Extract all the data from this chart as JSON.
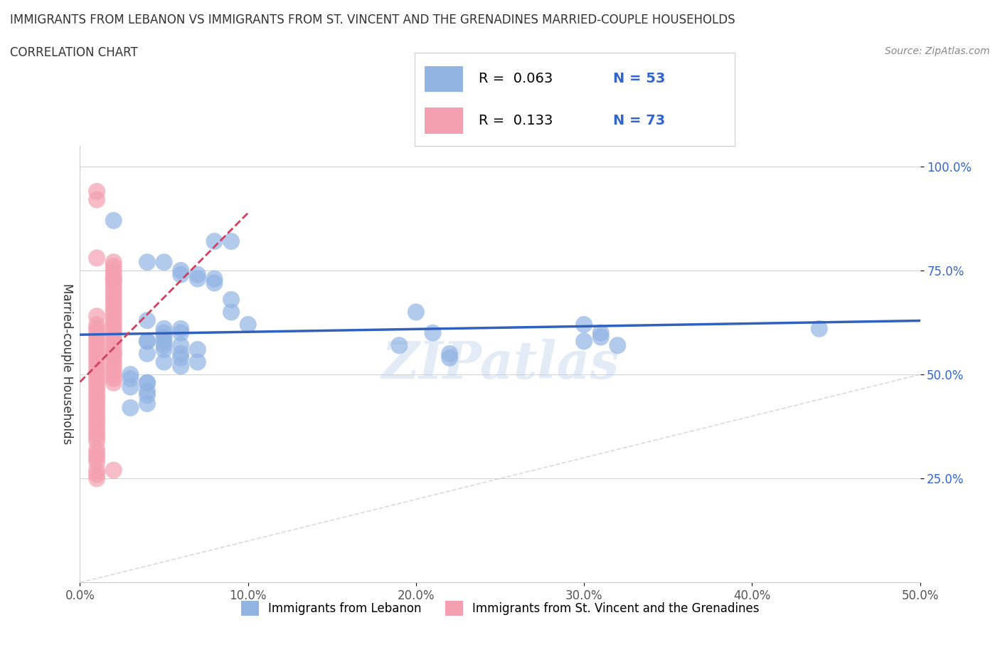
{
  "title_line1": "IMMIGRANTS FROM LEBANON VS IMMIGRANTS FROM ST. VINCENT AND THE GRENADINES MARRIED-COUPLE HOUSEHOLDS",
  "title_line2": "CORRELATION CHART",
  "source_text": "Source: ZipAtlas.com",
  "ylabel": "Married-couple Households",
  "xlabel": "",
  "xlim": [
    0.0,
    0.5
  ],
  "ylim": [
    0.0,
    1.05
  ],
  "xtick_labels": [
    "0.0%",
    "10.0%",
    "20.0%",
    "30.0%",
    "40.0%",
    "50.0%"
  ],
  "xtick_vals": [
    0.0,
    0.1,
    0.2,
    0.3,
    0.4,
    0.5
  ],
  "ytick_labels": [
    "25.0%",
    "50.0%",
    "75.0%",
    "100.0%"
  ],
  "ytick_vals": [
    0.25,
    0.5,
    0.75,
    1.0
  ],
  "legend_labels": [
    "Immigrants from Lebanon",
    "Immigrants from St. Vincent and the Grenadines"
  ],
  "R_blue": 0.063,
  "N_blue": 53,
  "R_red": 0.133,
  "N_red": 73,
  "blue_color": "#92B4E3",
  "pink_color": "#F4A0B0",
  "blue_line_color": "#3060C0",
  "red_line_color": "#D04060",
  "watermark": "ZIPatlas",
  "blue_x": [
    0.02,
    0.08,
    0.09,
    0.04,
    0.05,
    0.06,
    0.06,
    0.07,
    0.07,
    0.08,
    0.08,
    0.09,
    0.09,
    0.1,
    0.04,
    0.05,
    0.06,
    0.06,
    0.05,
    0.05,
    0.06,
    0.07,
    0.06,
    0.06,
    0.07,
    0.05,
    0.04,
    0.04,
    0.05,
    0.05,
    0.04,
    0.05,
    0.06,
    0.2,
    0.21,
    0.19,
    0.22,
    0.22,
    0.3,
    0.31,
    0.31,
    0.3,
    0.32,
    0.44,
    0.03,
    0.03,
    0.04,
    0.04,
    0.03,
    0.04,
    0.04,
    0.04,
    0.03
  ],
  "blue_y": [
    0.87,
    0.82,
    0.82,
    0.77,
    0.77,
    0.75,
    0.74,
    0.74,
    0.73,
    0.73,
    0.72,
    0.68,
    0.65,
    0.62,
    0.63,
    0.61,
    0.61,
    0.6,
    0.59,
    0.58,
    0.57,
    0.56,
    0.55,
    0.54,
    0.53,
    0.6,
    0.58,
    0.58,
    0.57,
    0.56,
    0.55,
    0.53,
    0.52,
    0.65,
    0.6,
    0.57,
    0.55,
    0.54,
    0.62,
    0.6,
    0.59,
    0.58,
    0.57,
    0.61,
    0.5,
    0.49,
    0.48,
    0.48,
    0.47,
    0.46,
    0.45,
    0.43,
    0.42
  ],
  "pink_x": [
    0.01,
    0.01,
    0.01,
    0.02,
    0.02,
    0.02,
    0.02,
    0.02,
    0.02,
    0.02,
    0.02,
    0.02,
    0.02,
    0.02,
    0.02,
    0.02,
    0.02,
    0.02,
    0.02,
    0.02,
    0.02,
    0.02,
    0.02,
    0.02,
    0.02,
    0.02,
    0.02,
    0.01,
    0.01,
    0.01,
    0.01,
    0.01,
    0.01,
    0.01,
    0.01,
    0.01,
    0.01,
    0.01,
    0.01,
    0.01,
    0.01,
    0.01,
    0.01,
    0.01,
    0.01,
    0.01,
    0.01,
    0.01,
    0.01,
    0.01,
    0.01,
    0.01,
    0.01,
    0.01,
    0.01,
    0.01,
    0.01,
    0.01,
    0.01,
    0.01,
    0.01,
    0.01,
    0.01,
    0.01,
    0.02,
    0.02,
    0.02,
    0.02,
    0.02,
    0.02,
    0.02,
    0.02,
    0.02
  ],
  "pink_y": [
    0.94,
    0.92,
    0.78,
    0.77,
    0.76,
    0.75,
    0.74,
    0.73,
    0.73,
    0.72,
    0.71,
    0.7,
    0.69,
    0.68,
    0.67,
    0.66,
    0.65,
    0.64,
    0.63,
    0.62,
    0.61,
    0.6,
    0.59,
    0.58,
    0.57,
    0.56,
    0.55,
    0.64,
    0.62,
    0.61,
    0.6,
    0.59,
    0.58,
    0.57,
    0.56,
    0.55,
    0.54,
    0.53,
    0.52,
    0.51,
    0.5,
    0.49,
    0.48,
    0.47,
    0.46,
    0.45,
    0.44,
    0.43,
    0.42,
    0.41,
    0.4,
    0.39,
    0.38,
    0.37,
    0.36,
    0.35,
    0.34,
    0.32,
    0.31,
    0.3,
    0.29,
    0.27,
    0.26,
    0.25,
    0.55,
    0.54,
    0.53,
    0.52,
    0.51,
    0.5,
    0.49,
    0.48,
    0.27
  ]
}
